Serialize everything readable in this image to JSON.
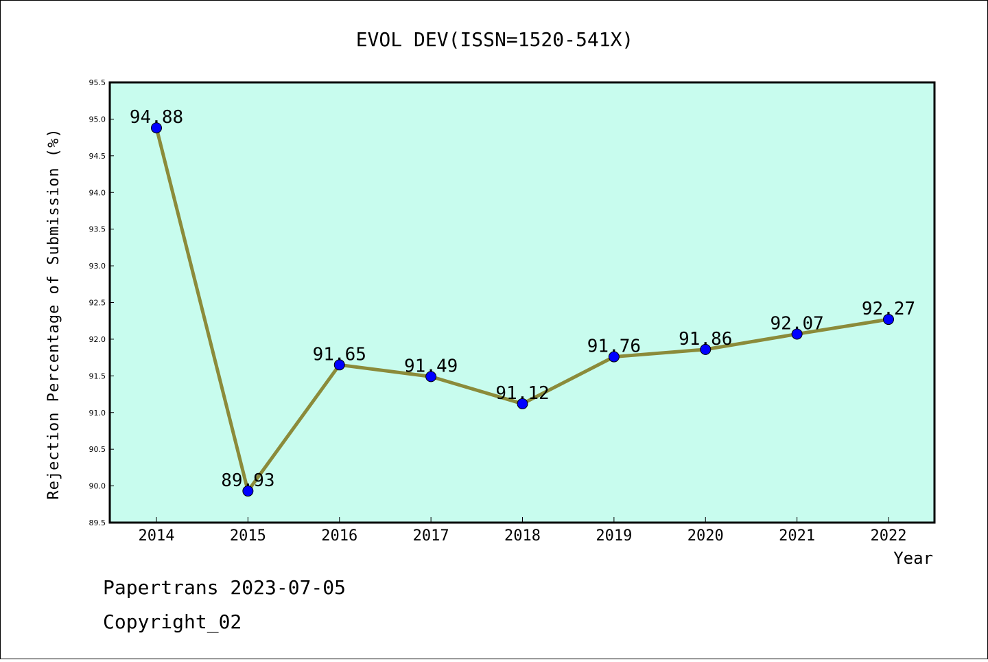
{
  "chart_data": {
    "type": "line",
    "title": "EVOL DEV(ISSN=1520-541X)",
    "xlabel": "Year",
    "ylabel": "Rejection Percentage of Submission (%)",
    "categories": [
      "2014",
      "2015",
      "2016",
      "2017",
      "2018",
      "2019",
      "2020",
      "2021",
      "2022"
    ],
    "values": [
      94.88,
      89.93,
      91.65,
      91.49,
      91.12,
      91.76,
      91.86,
      92.07,
      92.27
    ],
    "data_labels": [
      "94.88",
      "89.93",
      "91.65",
      "91.49",
      "91.12",
      "91.76",
      "91.86",
      "92.07",
      "92.27"
    ],
    "ylim": [
      89.5,
      95.5
    ],
    "yticks": [
      "89.5",
      "90.0",
      "90.5",
      "91.0",
      "91.5",
      "92.0",
      "92.5",
      "93.0",
      "93.5",
      "94.0",
      "94.5",
      "95.0",
      "95.5"
    ],
    "grid": false,
    "colors": {
      "plot_background": "#c8fcee",
      "line": "#8b8b3a",
      "marker": "#0000ff"
    }
  },
  "footer": {
    "line1": "Papertrans 2023-07-05",
    "line2": "Copyright_02"
  }
}
